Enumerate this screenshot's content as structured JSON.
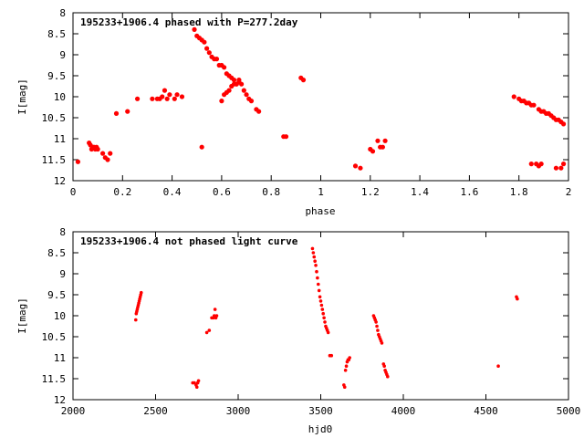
{
  "chart_data": [
    {
      "type": "scatter",
      "title": "195233+1906.4 phased with P=277.2day",
      "xlabel": "phase",
      "ylabel": "I[mag]",
      "xlim": [
        0,
        2
      ],
      "ylim": [
        12,
        8
      ],
      "y_inverted": true,
      "xticks": [
        0,
        0.2,
        0.4,
        0.6,
        0.8,
        1,
        1.2,
        1.4,
        1.6,
        1.8,
        2
      ],
      "yticks": [
        8,
        8.5,
        9,
        9.5,
        10,
        10.5,
        11,
        11.5,
        12
      ],
      "grid": false,
      "marker_color": "#ff0000",
      "series": [
        {
          "x": [
            0.02,
            0.065,
            0.07,
            0.075,
            0.08,
            0.085,
            0.09,
            0.095,
            0.1,
            0.12,
            0.13,
            0.14,
            0.15,
            0.175,
            0.22,
            0.26,
            0.32,
            0.34,
            0.35,
            0.36,
            0.37,
            0.38,
            0.39,
            0.41,
            0.42,
            0.44,
            0.49,
            0.5,
            0.51,
            0.52,
            0.53,
            0.54,
            0.55,
            0.56,
            0.57,
            0.58,
            0.59,
            0.6,
            0.61,
            0.62,
            0.63,
            0.64,
            0.65,
            0.66,
            0.67,
            0.68,
            0.69,
            0.7,
            0.71,
            0.72,
            0.74,
            0.75,
            0.6,
            0.61,
            0.62,
            0.63,
            0.64,
            0.65,
            0.66,
            0.67,
            0.52,
            0.85,
            0.86,
            0.92,
            0.93,
            1.14,
            1.16,
            1.2,
            1.21,
            1.23,
            1.24,
            1.25,
            1.26,
            1.78,
            1.8,
            1.81,
            1.82,
            1.83,
            1.84,
            1.85,
            1.86,
            1.88,
            1.89,
            1.9,
            1.91,
            1.92,
            1.93,
            1.94,
            1.95,
            1.96,
            1.97,
            1.98,
            1.85,
            1.87,
            1.88,
            1.89,
            1.95,
            1.97,
            1.98
          ],
          "y": [
            11.55,
            11.1,
            11.15,
            11.25,
            11.2,
            11.2,
            11.25,
            11.2,
            11.25,
            11.35,
            11.45,
            11.5,
            11.35,
            10.4,
            10.35,
            10.05,
            10.05,
            10.05,
            10.05,
            10.0,
            9.85,
            10.05,
            9.95,
            10.05,
            9.95,
            10.0,
            8.4,
            8.55,
            8.6,
            8.65,
            8.7,
            8.85,
            8.95,
            9.05,
            9.1,
            9.1,
            9.25,
            9.25,
            9.3,
            9.45,
            9.5,
            9.55,
            9.6,
            9.7,
            9.65,
            9.7,
            9.85,
            9.95,
            10.05,
            10.1,
            10.3,
            10.35,
            10.1,
            9.95,
            9.9,
            9.85,
            9.75,
            9.7,
            9.7,
            9.6,
            11.2,
            10.95,
            10.95,
            9.55,
            9.6,
            11.65,
            11.7,
            11.25,
            11.3,
            11.05,
            11.2,
            11.2,
            11.05,
            10.0,
            10.05,
            10.1,
            10.1,
            10.15,
            10.15,
            10.2,
            10.2,
            10.3,
            10.35,
            10.35,
            10.4,
            10.4,
            10.45,
            10.5,
            10.55,
            10.55,
            10.6,
            10.65,
            11.6,
            11.6,
            11.65,
            11.6,
            11.7,
            11.7,
            11.6
          ]
        }
      ]
    },
    {
      "type": "scatter",
      "title": "195233+1906.4 not phased light curve",
      "xlabel": "hjd0",
      "ylabel": "I[mag]",
      "xlim": [
        2000,
        5000
      ],
      "ylim": [
        12,
        8
      ],
      "y_inverted": true,
      "xticks": [
        2000,
        2500,
        3000,
        3500,
        4000,
        4500,
        5000
      ],
      "yticks": [
        8,
        8.5,
        9,
        9.5,
        10,
        10.5,
        11,
        11.5,
        12
      ],
      "grid": false,
      "marker_color": "#ff0000",
      "series": [
        {
          "x": [
            2380,
            2383,
            2386,
            2389,
            2392,
            2395,
            2398,
            2401,
            2404,
            2407,
            2410,
            2413,
            2725,
            2735,
            2745,
            2750,
            2755,
            2760,
            2810,
            2825,
            2840,
            2850,
            2855,
            2860,
            2865,
            2870,
            3450,
            3455,
            3460,
            3465,
            3470,
            3475,
            3480,
            3485,
            3490,
            3495,
            3500,
            3505,
            3510,
            3515,
            3520,
            3525,
            3530,
            3535,
            3540,
            3545,
            3555,
            3565,
            3640,
            3645,
            3650,
            3655,
            3660,
            3665,
            3670,
            3675,
            3820,
            3825,
            3830,
            3835,
            3840,
            3845,
            3850,
            3855,
            3860,
            3865,
            3870,
            3880,
            3885,
            3890,
            3895,
            3900,
            3905,
            4575,
            4685,
            4690
          ],
          "y": [
            10.1,
            9.95,
            9.9,
            9.85,
            9.8,
            9.75,
            9.7,
            9.65,
            9.6,
            9.55,
            9.5,
            9.45,
            11.6,
            11.6,
            11.65,
            11.7,
            11.6,
            11.55,
            10.4,
            10.35,
            10.05,
            10.05,
            10.0,
            9.85,
            10.05,
            10.0,
            8.4,
            8.5,
            8.6,
            8.7,
            8.8,
            8.95,
            9.1,
            9.25,
            9.4,
            9.55,
            9.65,
            9.75,
            9.85,
            9.95,
            10.05,
            10.15,
            10.25,
            10.3,
            10.35,
            10.4,
            10.95,
            10.95,
            11.65,
            11.7,
            11.3,
            11.2,
            11.1,
            11.05,
            11.05,
            11.0,
            10.0,
            10.05,
            10.1,
            10.15,
            10.25,
            10.35,
            10.45,
            10.5,
            10.55,
            10.6,
            10.65,
            11.15,
            11.2,
            11.3,
            11.35,
            11.4,
            11.45,
            11.2,
            9.55,
            9.6
          ]
        }
      ]
    }
  ]
}
